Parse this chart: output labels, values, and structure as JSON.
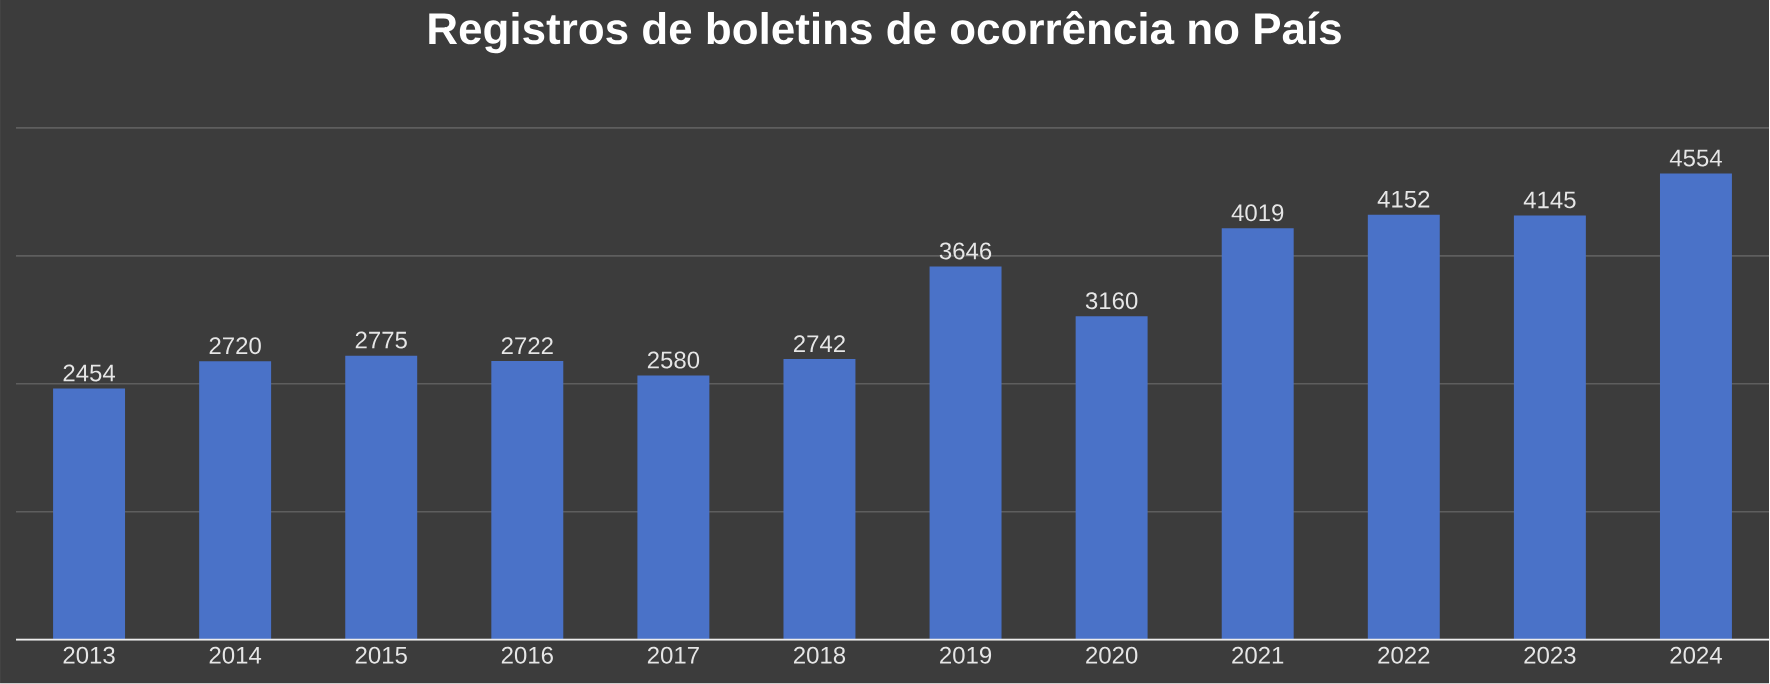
{
  "chart_data": {
    "type": "bar",
    "title": "Registros de boletins de ocorrência no País",
    "categories": [
      "2013",
      "2014",
      "2015",
      "2016",
      "2017",
      "2018",
      "2019",
      "2020",
      "2021",
      "2022",
      "2023",
      "2024"
    ],
    "values": [
      2454,
      2720,
      2775,
      2722,
      2580,
      2742,
      3646,
      3160,
      4019,
      4152,
      4145,
      4554
    ],
    "color": "#4a72c8",
    "ylim": [
      0,
      5000
    ],
    "yticks": [
      {
        "value": 0,
        "label": null
      },
      {
        "value": 1250,
        "label": null
      },
      {
        "value": 2500,
        "label": null
      },
      {
        "value": 3750,
        "label": null
      },
      {
        "value": 5000,
        "label": null
      }
    ],
    "tick_labels": "x",
    "grid": "y",
    "data_labels": true
  }
}
